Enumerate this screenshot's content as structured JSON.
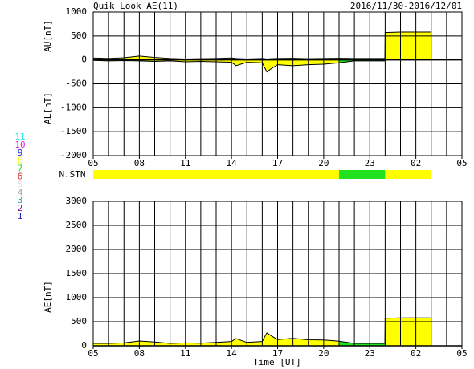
{
  "chart_data": [
    {
      "type": "area",
      "title": "Quik Look AE(11)",
      "date_range": "2016/11/30-2016/12/01",
      "y_labels": [
        "AU[nT]",
        "AL[nT]"
      ],
      "x": [
        5,
        6,
        7,
        8,
        9,
        10,
        11,
        12,
        13,
        14,
        14.3,
        15,
        16,
        16.3,
        16.6,
        17,
        18,
        19,
        20,
        21,
        22,
        23,
        23.98,
        24,
        25,
        26,
        27
      ],
      "series": [
        {
          "name": "AU",
          "values": [
            40,
            30,
            45,
            80,
            50,
            30,
            20,
            25,
            30,
            40,
            30,
            20,
            30,
            20,
            25,
            30,
            35,
            25,
            30,
            35,
            30,
            30,
            30,
            570,
            580,
            580,
            580
          ]
        },
        {
          "name": "AL",
          "values": [
            -10,
            -20,
            -15,
            -20,
            -30,
            -20,
            -40,
            -30,
            -40,
            -50,
            -120,
            -50,
            -60,
            -250,
            -180,
            -100,
            -120,
            -100,
            -90,
            -60,
            -20,
            -20,
            -20,
            0,
            0,
            0,
            0
          ]
        }
      ],
      "xlim": [
        5,
        29
      ],
      "xticks": [
        {
          "value": 5,
          "label": "05"
        },
        {
          "value": 8,
          "label": "08"
        },
        11,
        14,
        17,
        20,
        23,
        {
          "value": 26,
          "label": "02"
        },
        {
          "value": 29,
          "label": "05"
        }
      ],
      "xgrid_step": 1,
      "ylim": [
        -2000,
        1000
      ],
      "yticks": [
        -2000,
        -1500,
        -1000,
        -500,
        0,
        500,
        1000
      ]
    },
    {
      "type": "stations",
      "label": "N.STN",
      "starts": [
        5,
        21,
        24
      ],
      "ends": [
        21,
        24,
        27
      ],
      "counts": [
        8,
        7,
        8
      ],
      "legend": [
        {
          "label": 1,
          "color": "#2020c0"
        },
        {
          "label": 2,
          "color": "#800080"
        },
        {
          "label": 3,
          "color": "#20a0a0"
        },
        {
          "label": 4,
          "color": "#a0a0a0"
        },
        {
          "label": 5,
          "color": "#e0e0e0"
        },
        {
          "label": 6,
          "color": "#e02020"
        },
        {
          "label": 7,
          "color": "#20e020"
        },
        {
          "label": 8,
          "color": "#ffff00"
        },
        {
          "label": 9,
          "color": "#2020e0"
        },
        {
          "label": 10,
          "color": "#e020e0"
        },
        {
          "label": 11,
          "color": "#20e0e0"
        }
      ]
    },
    {
      "type": "area",
      "y_label": "AE[nT]",
      "x_label": "Time [UT]",
      "x": [
        5,
        6,
        7,
        8,
        9,
        10,
        11,
        12,
        13,
        14,
        14.3,
        15,
        16,
        16.3,
        16.6,
        17,
        18,
        19,
        20,
        21,
        22,
        23,
        23.98,
        24,
        25,
        26,
        27
      ],
      "series": [
        {
          "name": "AE",
          "values": [
            50,
            50,
            60,
            100,
            80,
            50,
            60,
            55,
            70,
            90,
            150,
            70,
            90,
            270,
            205,
            130,
            155,
            125,
            120,
            95,
            50,
            50,
            50,
            570,
            580,
            580,
            580
          ]
        }
      ],
      "xlim": [
        5,
        29
      ],
      "xticks": [
        {
          "value": 5,
          "label": "05"
        },
        {
          "value": 8,
          "label": "08"
        },
        11,
        14,
        17,
        20,
        23,
        {
          "value": 26,
          "label": "02"
        },
        {
          "value": 29,
          "label": "05"
        }
      ],
      "xgrid_step": 1,
      "ylim": [
        0,
        3000
      ],
      "yticks": [
        0,
        500,
        1000,
        1500,
        2000,
        2500,
        3000
      ]
    }
  ]
}
